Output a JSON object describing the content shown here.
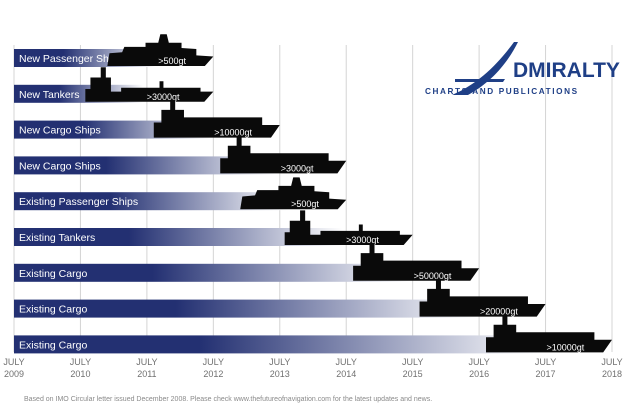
{
  "logo": {
    "word": "DMIRALTY",
    "subtitle": "CHARTS AND PUBLICATIONS"
  },
  "footnote": "Based on IMO Circular letter issued December 2008. Please check www.thefutureofnavigation.com for the latest updates and news.",
  "colors": {
    "bar_dark": "#233072",
    "bar_light": "#ffffff",
    "ship": "#0a0a0a",
    "grid": "#d4d4d4",
    "logo": "#1f3f86",
    "tick_text": "#707070"
  },
  "chart_data": {
    "type": "timeline",
    "x_ticks": [
      {
        "line1": "JULY",
        "line2": "2009",
        "value": 2009.5
      },
      {
        "line1": "JULY",
        "line2": "2010",
        "value": 2010.5
      },
      {
        "line1": "JULY",
        "line2": "2011",
        "value": 2011.5
      },
      {
        "line1": "JULY",
        "line2": "2012",
        "value": 2012.5
      },
      {
        "line1": "JULY",
        "line2": "2013",
        "value": 2013.5
      },
      {
        "line1": "JULY",
        "line2": "2014",
        "value": 2014.5
      },
      {
        "line1": "JULY",
        "line2": "2015",
        "value": 2015.5
      },
      {
        "line1": "JULY",
        "line2": "2016",
        "value": 2016.5
      },
      {
        "line1": "JULY",
        "line2": "2017",
        "value": 2017.5
      },
      {
        "line1": "JULY",
        "line2": "2018",
        "value": 2018.5
      }
    ],
    "xlim": [
      2009.5,
      2018.5
    ],
    "rows": [
      {
        "label": "New Passenger Ships",
        "threshold": ">500gt",
        "end": 2012.5,
        "ship": "passenger"
      },
      {
        "label": "New Tankers",
        "threshold": ">3000gt",
        "end": 2012.5,
        "ship": "tanker"
      },
      {
        "label": "New Cargo Ships",
        "threshold": ">10000gt",
        "end": 2013.5,
        "ship": "cargo"
      },
      {
        "label": "New Cargo Ships",
        "threshold": ">3000gt",
        "end": 2014.5,
        "ship": "cargo"
      },
      {
        "label": "Existing Passenger Ships",
        "threshold": ">500gt",
        "end": 2014.5,
        "ship": "passenger"
      },
      {
        "label": "Existing Tankers",
        "threshold": ">3000gt",
        "end": 2015.5,
        "ship": "tanker"
      },
      {
        "label": "Existing Cargo",
        "threshold": ">50000gt",
        "end": 2016.5,
        "ship": "cargo"
      },
      {
        "label": "Existing Cargo",
        "threshold": ">20000gt",
        "end": 2017.5,
        "ship": "cargo"
      },
      {
        "label": "Existing Cargo",
        "threshold": ">10000gt",
        "end": 2018.5,
        "ship": "cargo"
      }
    ]
  }
}
